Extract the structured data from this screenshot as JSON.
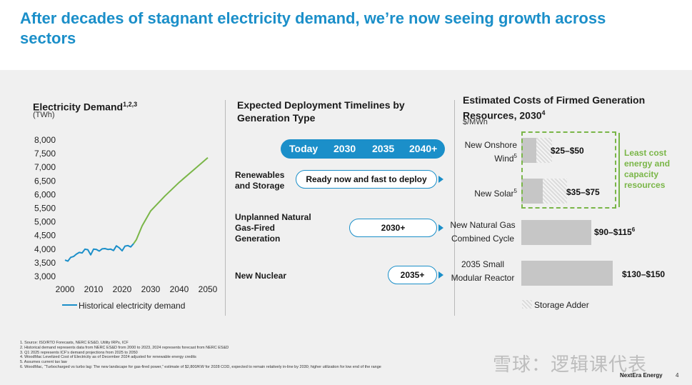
{
  "headline": "After decades of stagnant electricity demand, we’re now seeing growth across sectors",
  "left_panel": {
    "title": "Electricity Demand",
    "title_sup": "1,2,3",
    "unit": "(TWh)",
    "legend": "Historical electricity demand"
  },
  "chart_data": [
    {
      "type": "line",
      "title": "Electricity Demand",
      "ylabel": "(TWh)",
      "xlim": [
        2000,
        2050
      ],
      "ylim": [
        3000,
        8000
      ],
      "x_ticks": [
        "2000",
        "2010",
        "2020",
        "2030",
        "2040",
        "2050"
      ],
      "y_ticks": [
        "8,000",
        "7,500",
        "7,000",
        "6,500",
        "6,000",
        "5,500",
        "5,000",
        "4,500",
        "4,000",
        "3,500",
        "3,000"
      ],
      "series": [
        {
          "name": "Historical electricity demand",
          "color": "#1b8fc9",
          "x": [
            2000,
            2001,
            2002,
            2003,
            2004,
            2005,
            2006,
            2007,
            2008,
            2009,
            2010,
            2011,
            2012,
            2013,
            2014,
            2015,
            2016,
            2017,
            2018,
            2019,
            2020,
            2021,
            2022,
            2023,
            2024
          ],
          "values": [
            3600,
            3560,
            3700,
            3730,
            3820,
            3880,
            3860,
            4000,
            3980,
            3790,
            4000,
            3990,
            3930,
            4010,
            4020,
            3990,
            4000,
            3950,
            4120,
            4050,
            3940,
            4110,
            4130,
            4080,
            4200
          ]
        },
        {
          "color": "#7ab648",
          "x": [
            2024,
            2025,
            2027,
            2030,
            2035,
            2040,
            2045,
            2050
          ],
          "values": [
            4200,
            4350,
            4850,
            5400,
            5950,
            6450,
            6900,
            7350
          ]
        }
      ]
    },
    {
      "type": "bar",
      "title": "Estimated Costs of Firmed Generation Resources, 2030",
      "ylabel": "$/MWh",
      "categories": [
        "New Onshore Wind",
        "New Solar",
        "New Natural Gas Combined Cycle",
        "2035 Small Modular Reactor"
      ],
      "series": [
        {
          "name": "Base",
          "values": [
            25,
            35,
            90,
            130
          ]
        },
        {
          "name": "Storage Adder",
          "values": [
            25,
            40,
            25,
            20
          ]
        }
      ],
      "range_labels": [
        "$25–$50",
        "$35–$75",
        "$90–$115",
        "$130–$150"
      ],
      "xlim": [
        0,
        155
      ]
    }
  ],
  "middle_panel": {
    "title": "Expected Deployment Timelines by Generation Type",
    "timeline": [
      "Today",
      "2030",
      "2035",
      "2040+"
    ],
    "rows": [
      {
        "label": "Renewables and Storage",
        "pill": "Ready now and fast to deploy"
      },
      {
        "label": "Unplanned Natural Gas-Fired Generation",
        "pill": "2030+"
      },
      {
        "label": "New Nuclear",
        "pill": "2035+"
      }
    ]
  },
  "right_panel": {
    "title": "Estimated Costs of Firmed Generation Resources, 2030",
    "title_sup": "4",
    "unit": "$/MWh",
    "rows": [
      {
        "label": "New Onshore Wind",
        "sup": "5",
        "value": "$25–$50",
        "value_sup": ""
      },
      {
        "label": "New Solar",
        "sup": "5",
        "value": "$35–$75",
        "value_sup": ""
      },
      {
        "label": "New Natural Gas Combined Cycle",
        "sup": "",
        "value": "$90–$115",
        "value_sup": "6"
      },
      {
        "label": "2035 Small Modular Reactor",
        "sup": "",
        "value": "$130–$150",
        "value_sup": ""
      }
    ],
    "highlight_note": "Least cost energy and capacity resources",
    "legend": "Storage Adder",
    "colors": {
      "base": "#c6c6c6",
      "highlight": "#7ab648",
      "accent": "#1b8fc9"
    }
  },
  "footnotes": [
    "1.  Source: ISO/RTO Forecasts, NERC ES&D, Utility IRPs, ICF",
    "2.  Historical demand represents data from NERC ES&D from 2000 to 2023, 2024 represents forecast from NERC ES&D",
    "3.  Q1 2025 represents ICF’s demand projections from 2025 to 2050",
    "4.  WoodMac Levelized Cost of Electricity as of December 2024 adjusted for renewable energy credits",
    "5.  Assumes current tax law",
    "6.  WoodMac, “Turbocharged vs turbo lag: The new landscape for gas-fired power,” estimate of $2,800/KW for 2028 COD, expected to remain relatively in-line by 2030; higher utilization for low end of the range"
  ],
  "brand": "NextEra Energy",
  "page_number": "4",
  "watermark": "雪球：逻辑课代表"
}
